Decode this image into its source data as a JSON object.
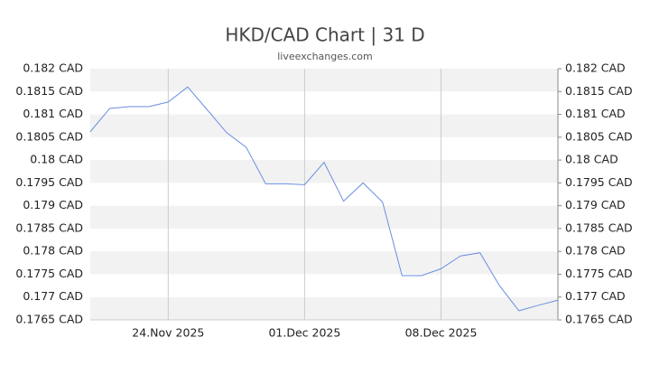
{
  "chart_data": {
    "type": "line",
    "title": "HKD/CAD Chart | 31 D",
    "subtitle": "liveexchanges.com",
    "x": [
      "2025-11-20",
      "2025-11-21",
      "2025-11-22",
      "2025-11-23",
      "2025-11-24",
      "2025-11-25",
      "2025-11-26",
      "2025-11-27",
      "2025-11-28",
      "2025-11-29",
      "2025-11-30",
      "2025-12-01",
      "2025-12-02",
      "2025-12-03",
      "2025-12-04",
      "2025-12-05",
      "2025-12-06",
      "2025-12-07",
      "2025-12-08",
      "2025-12-09",
      "2025-12-10",
      "2025-12-11",
      "2025-12-12",
      "2025-12-13",
      "2025-12-14"
    ],
    "series": [
      {
        "name": "HKD/CAD",
        "color": "#6a8ee0",
        "values": [
          0.18062,
          0.18113,
          0.18117,
          0.18117,
          0.18127,
          0.1816,
          0.1811,
          0.1806,
          0.18028,
          0.17948,
          0.17948,
          0.17946,
          0.17995,
          0.1791,
          0.1795,
          0.17908,
          0.17747,
          0.17747,
          0.17762,
          0.1779,
          0.17797,
          0.17725,
          0.1767,
          0.17682,
          0.17693
        ]
      }
    ],
    "xlim": [
      "2025-11-20",
      "2025-12-14"
    ],
    "xticks": [
      {
        "value": "2025-11-24",
        "label": "24.Nov 2025"
      },
      {
        "value": "2025-12-01",
        "label": "01.Dec 2025"
      },
      {
        "value": "2025-12-08",
        "label": "08.Dec 2025"
      }
    ],
    "ylim": [
      0.1765,
      0.182
    ],
    "yticks": [
      {
        "value": 0.1765,
        "label": "0.1765 CAD"
      },
      {
        "value": 0.177,
        "label": "0.177 CAD"
      },
      {
        "value": 0.1775,
        "label": "0.1775 CAD"
      },
      {
        "value": 0.178,
        "label": "0.178 CAD"
      },
      {
        "value": 0.1785,
        "label": "0.1785 CAD"
      },
      {
        "value": 0.179,
        "label": "0.179 CAD"
      },
      {
        "value": 0.1795,
        "label": "0.1795 CAD"
      },
      {
        "value": 0.18,
        "label": "0.18 CAD"
      },
      {
        "value": 0.1805,
        "label": "0.1805 CAD"
      },
      {
        "value": 0.181,
        "label": "0.181 CAD"
      },
      {
        "value": 0.1815,
        "label": "0.1815 CAD"
      },
      {
        "value": 0.182,
        "label": "0.182 CAD"
      }
    ],
    "grid": true
  }
}
